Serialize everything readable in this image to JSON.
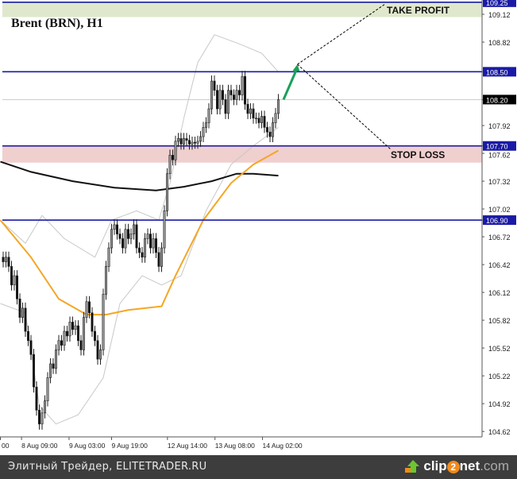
{
  "chart_data": {
    "type": "candlestick",
    "title": "Brent (BRN), H1",
    "y_ticks": [
      "109.12",
      "108.82",
      "108.50",
      "108.20",
      "107.92",
      "107.70",
      "107.62",
      "107.32",
      "107.02",
      "106.90",
      "106.72",
      "106.42",
      "106.12",
      "105.82",
      "105.52",
      "105.22",
      "104.92",
      "104.62"
    ],
    "ylim": [
      104.55,
      109.27
    ],
    "x_ticks": [
      {
        "label": "00",
        "bar": -1
      },
      {
        "label": "8 Aug 09:00",
        "bar": 6.6
      },
      {
        "label": "9 Aug 03:00",
        "bar": 23.7
      },
      {
        "label": "9 Aug 19:00",
        "bar": 39
      },
      {
        "label": "12 Aug 14:00",
        "bar": 59.1
      },
      {
        "label": "13 Aug 08:00",
        "bar": 76.2
      },
      {
        "label": "14 Aug 02:00",
        "bar": 93.3
      }
    ],
    "close": [
      106.45,
      106.5,
      106.4,
      106.2,
      106.3,
      106.05,
      105.85,
      105.95,
      105.7,
      105.6,
      105.45,
      105.1,
      104.85,
      104.7,
      104.82,
      104.95,
      105.2,
      105.35,
      105.3,
      105.5,
      105.6,
      105.55,
      105.7,
      105.65,
      105.8,
      105.72,
      105.76,
      105.6,
      105.5,
      105.85,
      106.02,
      105.9,
      105.7,
      105.6,
      105.4,
      105.5,
      106.1,
      106.4,
      106.6,
      106.8,
      106.85,
      106.75,
      106.7,
      106.6,
      106.8,
      106.7,
      106.75,
      106.85,
      106.6,
      106.55,
      106.5,
      106.7,
      106.75,
      106.6,
      106.7,
      106.55,
      106.4,
      106.6,
      107.0,
      107.4,
      107.6,
      107.55,
      107.75,
      107.78,
      107.72,
      107.78,
      107.76,
      107.72,
      107.74,
      107.73,
      107.75,
      107.8,
      107.9,
      107.95,
      108.1,
      108.4,
      108.3,
      108.1,
      108.3,
      108.2,
      108.05,
      108.3,
      108.25,
      108.2,
      108.3,
      108.25,
      108.45,
      108.15,
      108.05,
      108.1,
      108.0,
      108.0,
      107.95,
      108.02,
      107.9,
      107.85,
      107.8,
      107.95,
      108.05,
      108.2
    ],
    "indicators": {
      "ma_orange": {
        "color": "#f5a623",
        "points": [
          [
            -1,
            106.9
          ],
          [
            10,
            106.5
          ],
          [
            20,
            106.05
          ],
          [
            30,
            105.88
          ],
          [
            37,
            105.88
          ],
          [
            45,
            105.93
          ],
          [
            57,
            105.97
          ],
          [
            62,
            106.3
          ],
          [
            72,
            106.9
          ],
          [
            82,
            107.3
          ],
          [
            90,
            107.5
          ],
          [
            99,
            107.65
          ]
        ]
      },
      "ma_black": {
        "color": "#111111",
        "points": [
          [
            -1,
            107.53
          ],
          [
            10,
            107.42
          ],
          [
            25,
            107.32
          ],
          [
            40,
            107.25
          ],
          [
            55,
            107.22
          ],
          [
            65,
            107.26
          ],
          [
            75,
            107.32
          ],
          [
            84,
            107.4
          ],
          [
            90,
            107.4
          ],
          [
            99,
            107.38
          ]
        ]
      },
      "bollinger_upper": {
        "color": "#c8c8c8",
        "points": [
          [
            -1,
            106.9
          ],
          [
            8,
            106.65
          ],
          [
            14,
            106.95
          ],
          [
            22,
            106.7
          ],
          [
            33,
            106.5
          ],
          [
            39,
            106.9
          ],
          [
            48,
            107.0
          ],
          [
            56,
            106.9
          ],
          [
            60,
            107.3
          ],
          [
            65,
            108.0
          ],
          [
            70,
            108.6
          ],
          [
            76,
            108.9
          ],
          [
            85,
            108.8
          ],
          [
            93,
            108.7
          ],
          [
            99,
            108.5
          ]
        ]
      },
      "bollinger_lower": {
        "color": "#c8c8c8",
        "points": [
          [
            -1,
            106.0
          ],
          [
            8,
            105.9
          ],
          [
            13,
            104.9
          ],
          [
            19,
            104.7
          ],
          [
            27,
            104.8
          ],
          [
            36,
            105.2
          ],
          [
            42,
            106.0
          ],
          [
            50,
            106.3
          ],
          [
            57,
            106.2
          ],
          [
            64,
            106.3
          ],
          [
            73,
            107.0
          ],
          [
            82,
            107.5
          ],
          [
            90,
            107.7
          ],
          [
            99,
            107.9
          ]
        ]
      }
    },
    "levels": [
      {
        "price": 109.25,
        "label": "109.25",
        "color": "#1a1aa6"
      },
      {
        "price": 108.5,
        "label": "108.50",
        "color": "#1a1aa6"
      },
      {
        "price": 108.2,
        "label": "108.20",
        "color": "#000000",
        "current": true
      },
      {
        "price": 107.7,
        "label": "107.70",
        "color": "#1a1aa6"
      },
      {
        "price": 106.9,
        "label": "106.90",
        "color": "#1a1aa6"
      }
    ],
    "zones": [
      {
        "from": 109.09,
        "to": 109.25,
        "color": "#dfe8cc",
        "label": "TAKE PROFIT"
      },
      {
        "from": 107.52,
        "to": 107.7,
        "color": "#f0cfcf",
        "label": "STOP LOSS"
      }
    ],
    "forecast_arrow": {
      "from": [
        100,
        108.2
      ],
      "to": [
        105,
        108.58
      ],
      "color": "#1aa05a"
    },
    "grid": false
  },
  "footer": {
    "text": "Элитный Трейдер, ELITETRADER.RU",
    "logo_a": "clip",
    "logo_two": "2",
    "logo_b": "net",
    "logo_c": ".com"
  }
}
